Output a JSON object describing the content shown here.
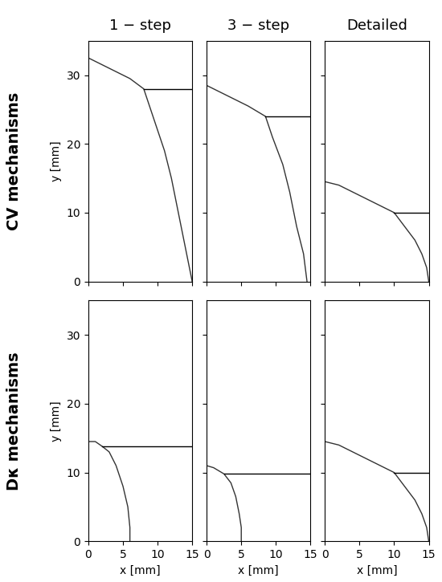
{
  "chart_data": [
    {
      "type": "line",
      "title": "1 − step",
      "ylabel": "y [mm]",
      "annotations": [
        "CV mechanisms"
      ],
      "xlim": [
        0,
        15
      ],
      "ylim": [
        0,
        35
      ],
      "xticks": [
        0,
        5,
        10,
        15
      ],
      "yticks": [
        0,
        10,
        20,
        30
      ],
      "tick_labels": "y",
      "series": [
        {
          "color": "#333333",
          "line_style": "solid",
          "x": [
            0,
            2,
            4,
            6,
            8,
            9,
            10,
            11,
            12,
            13,
            14,
            15
          ],
          "values": [
            32.5,
            31.5,
            30.5,
            29.5,
            28,
            25,
            22,
            19,
            15,
            10,
            5,
            0
          ]
        },
        {
          "color": "#000000",
          "line_style": "solid",
          "x": [
            8,
            15
          ],
          "values": [
            28,
            28
          ]
        }
      ]
    },
    {
      "type": "line",
      "title": "3 − step",
      "xlim": [
        0,
        15
      ],
      "ylim": [
        0,
        35
      ],
      "xticks": [
        0,
        5,
        10,
        15
      ],
      "yticks": [
        0,
        10,
        20,
        30
      ],
      "tick_labels": false,
      "series": [
        {
          "color": "#333333",
          "line_style": "solid",
          "x": [
            0,
            2,
            4,
            6,
            8.5,
            9.5,
            11,
            12,
            13,
            14,
            14.5
          ],
          "values": [
            28.5,
            27.5,
            26.5,
            25.5,
            24,
            21,
            17,
            13,
            8,
            4,
            0
          ]
        },
        {
          "color": "#000000",
          "line_style": "solid",
          "x": [
            8.5,
            15
          ],
          "values": [
            24,
            24
          ]
        }
      ]
    },
    {
      "type": "line",
      "title": "Detailed",
      "xlim": [
        0,
        15
      ],
      "ylim": [
        0,
        35
      ],
      "xticks": [
        0,
        5,
        10,
        15
      ],
      "yticks": [
        0,
        10,
        20,
        30
      ],
      "tick_labels": false,
      "series": [
        {
          "color": "#333333",
          "line_style": "solid",
          "x": [
            0,
            2,
            4,
            6,
            8,
            10,
            11.5,
            13,
            14,
            14.7,
            15
          ],
          "values": [
            14.5,
            14,
            13,
            12,
            11,
            10,
            8,
            6,
            4,
            2,
            0
          ]
        },
        {
          "color": "#000000",
          "line_style": "solid",
          "x": [
            10,
            15
          ],
          "values": [
            10,
            10
          ]
        }
      ]
    },
    {
      "type": "line",
      "xlabel": "x [mm]",
      "ylabel": "y [mm]",
      "annotations": [
        "Dκ mechanisms"
      ],
      "xlim": [
        0,
        15
      ],
      "ylim": [
        0,
        35
      ],
      "xticks": [
        0,
        5,
        10,
        15
      ],
      "yticks": [
        0,
        10,
        20,
        30
      ],
      "tick_labels": true,
      "series": [
        {
          "color": "#333333",
          "line_style": "solid",
          "x": [
            0,
            1,
            2,
            3,
            4,
            5,
            5.7,
            6,
            6
          ],
          "values": [
            14.5,
            14.5,
            13.8,
            13,
            11,
            8,
            5,
            2,
            0
          ]
        },
        {
          "color": "#000000",
          "line_style": "solid",
          "x": [
            2,
            15
          ],
          "values": [
            13.8,
            13.8
          ]
        }
      ]
    },
    {
      "type": "line",
      "xlabel": "x [mm]",
      "xlim": [
        0,
        15
      ],
      "ylim": [
        0,
        35
      ],
      "xticks": [
        0,
        5,
        10,
        15
      ],
      "yticks": [
        0,
        10,
        20,
        30
      ],
      "tick_labels": "x",
      "series": [
        {
          "color": "#333333",
          "line_style": "solid",
          "x": [
            0,
            1,
            2.5,
            3.5,
            4.2,
            4.7,
            5,
            5
          ],
          "values": [
            11,
            10.7,
            9.8,
            8.5,
            6.5,
            4,
            2,
            0
          ]
        },
        {
          "color": "#000000",
          "line_style": "solid",
          "x": [
            2.5,
            15
          ],
          "values": [
            9.8,
            9.8
          ]
        }
      ]
    },
    {
      "type": "line",
      "xlabel": "x [mm]",
      "xlim": [
        0,
        15
      ],
      "ylim": [
        0,
        35
      ],
      "xticks": [
        0,
        5,
        10,
        15
      ],
      "yticks": [
        0,
        10,
        20,
        30
      ],
      "tick_labels": "x",
      "series": [
        {
          "color": "#333333",
          "line_style": "solid",
          "x": [
            0,
            2,
            4,
            6,
            8,
            10,
            11.5,
            13,
            14,
            14.7,
            15
          ],
          "values": [
            14.5,
            14,
            13,
            12,
            11,
            10,
            8,
            6,
            4,
            2,
            0
          ]
        },
        {
          "color": "#000000",
          "line_style": "solid",
          "x": [
            10,
            15
          ],
          "values": [
            10,
            10
          ]
        }
      ]
    }
  ]
}
